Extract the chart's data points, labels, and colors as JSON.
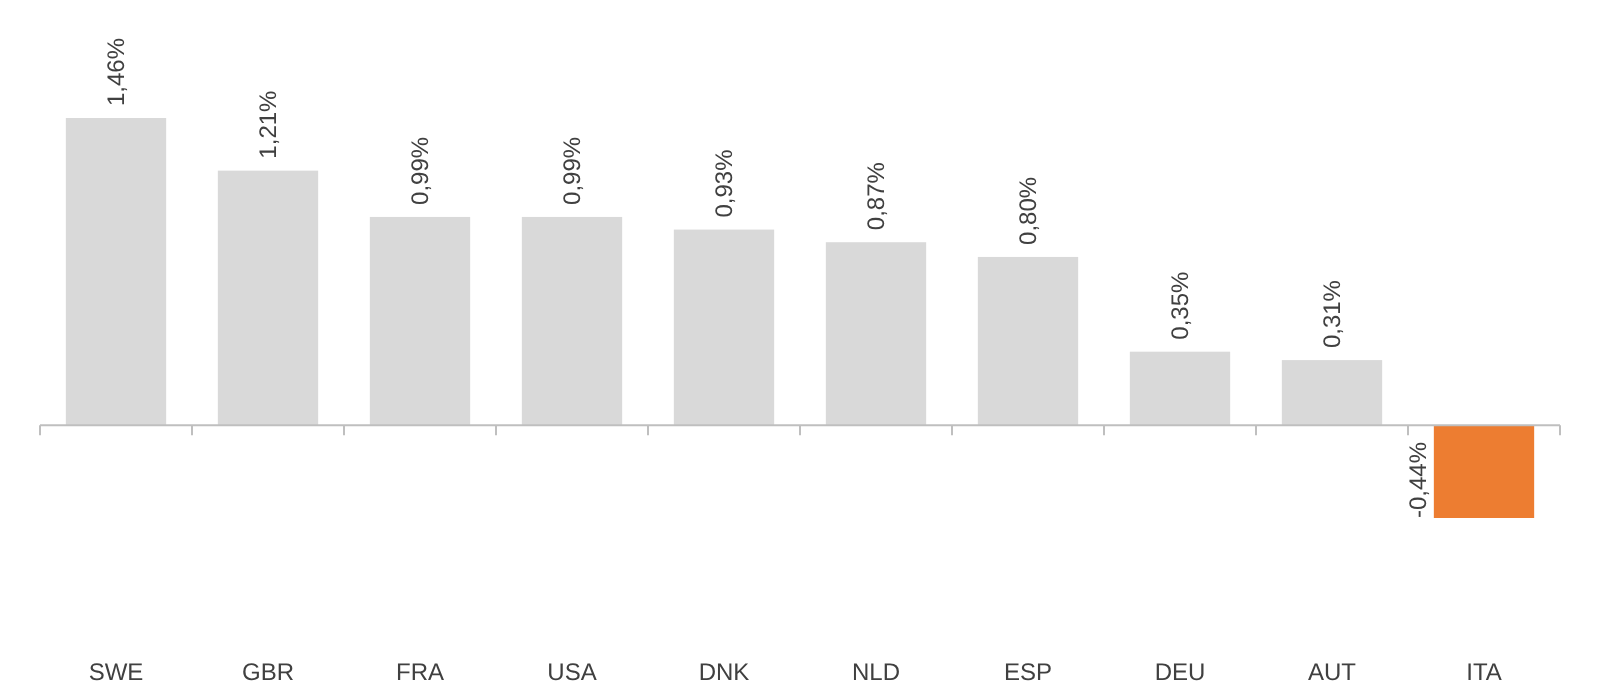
{
  "chart_data": {
    "type": "bar",
    "categories": [
      "SWE",
      "GBR",
      "FRA",
      "USA",
      "DNK",
      "NLD",
      "ESP",
      "DEU",
      "AUT",
      "ITA"
    ],
    "values": [
      1.46,
      1.21,
      0.99,
      0.99,
      0.93,
      0.87,
      0.8,
      0.35,
      0.31,
      -0.44
    ],
    "colors": [
      "#d9d9d9",
      "#d9d9d9",
      "#d9d9d9",
      "#d9d9d9",
      "#d9d9d9",
      "#d9d9d9",
      "#d9d9d9",
      "#d9d9d9",
      "#d9d9d9",
      "#ed7d31"
    ],
    "value_labels": [
      "1,46%",
      "1,21%",
      "0,99%",
      "0,99%",
      "0,93%",
      "0,87%",
      "0,80%",
      "0,35%",
      "0,31%",
      "-0,44%"
    ],
    "grid": false
  }
}
